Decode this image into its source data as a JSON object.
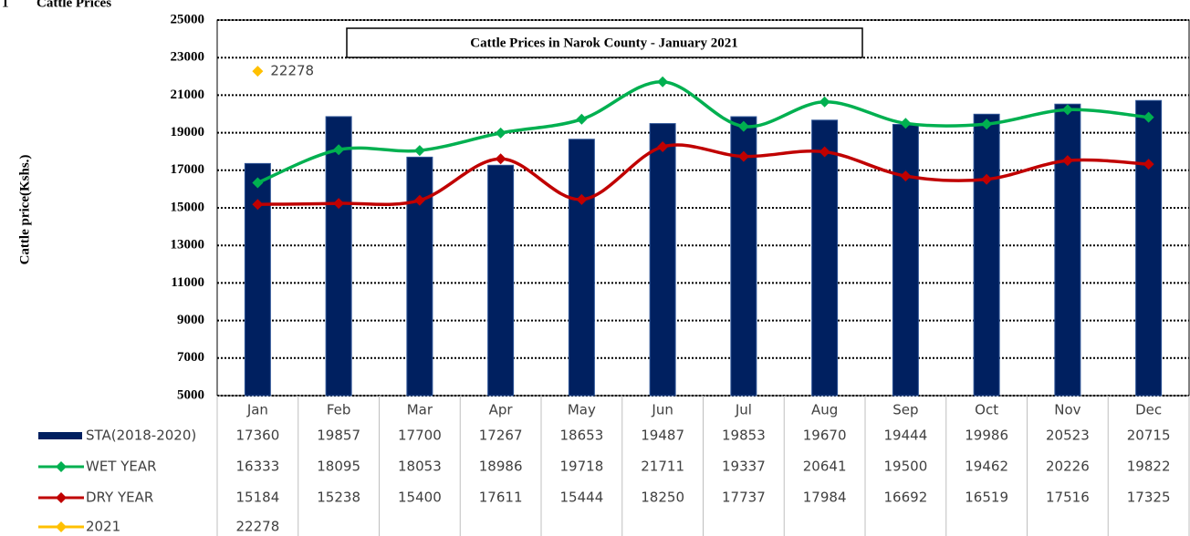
{
  "section_number": "1",
  "section_heading": "Cattle Prices",
  "chart_data": {
    "type": "bar-line",
    "title": "Cattle Prices in Narok County - January 2021",
    "y_label": "Cattle price(Kshs.)",
    "categories": [
      "Jan",
      "Feb",
      "Mar",
      "Apr",
      "May",
      "Jun",
      "Jul",
      "Aug",
      "Sep",
      "Oct",
      "Nov",
      "Dec"
    ],
    "ylim": [
      5000,
      25000
    ],
    "yticks": [
      5000,
      7000,
      9000,
      11000,
      13000,
      15000,
      17000,
      19000,
      21000,
      23000,
      25000
    ],
    "grid": true,
    "series": [
      {
        "name": "STA(2018-2020)",
        "type": "bar",
        "color": "#002060",
        "values": [
          17360,
          19857,
          17700,
          17267,
          18653,
          19487,
          19853,
          19670,
          19444,
          19986,
          20523,
          20715
        ]
      },
      {
        "name": "WET YEAR",
        "type": "line",
        "color": "#00b050",
        "values": [
          16333,
          18095,
          18053,
          18986,
          19718,
          21711,
          19337,
          20641,
          19500,
          19462,
          20226,
          19822
        ]
      },
      {
        "name": "DRY YEAR",
        "type": "line",
        "color": "#c00000",
        "values": [
          15184,
          15238,
          15400,
          17611,
          15444,
          18250,
          17737,
          17984,
          16692,
          16519,
          17516,
          17325
        ]
      },
      {
        "name": "2021",
        "type": "line",
        "color": "#ffc000",
        "values": [
          22278,
          null,
          null,
          null,
          null,
          null,
          null,
          null,
          null,
          null,
          null,
          null
        ],
        "data_label": true
      }
    ]
  }
}
